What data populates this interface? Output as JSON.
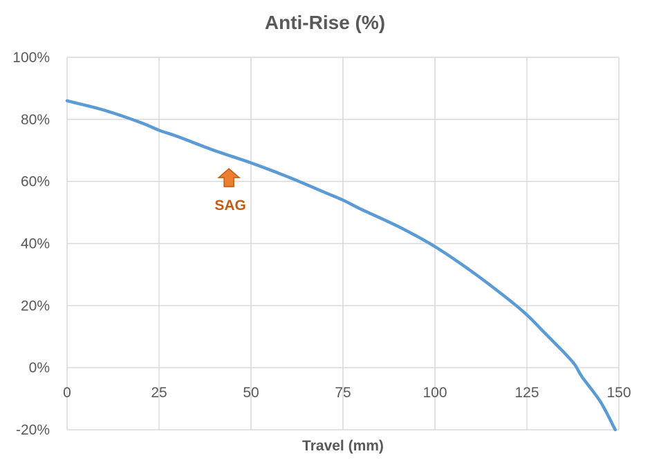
{
  "chart_data": {
    "type": "line",
    "title": "Anti-Rise (%)",
    "xlabel": "Travel (mm)",
    "ylabel": "",
    "xlim": [
      0,
      150
    ],
    "ylim": [
      -20,
      100
    ],
    "x_ticks": [
      0,
      25,
      50,
      75,
      100,
      125,
      150
    ],
    "x_tick_labels": [
      "0",
      "25",
      "50",
      "75",
      "100",
      "125",
      "150"
    ],
    "y_ticks": [
      -20,
      0,
      20,
      40,
      60,
      80,
      100
    ],
    "y_tick_labels": [
      "-20%",
      "0%",
      "20%",
      "40%",
      "60%",
      "80%",
      "100%"
    ],
    "grid": true,
    "legend": "none",
    "series": [
      {
        "color": "#5b9bd5",
        "x": [
          0,
          10,
          20,
          25,
          30,
          40,
          50,
          60,
          70,
          75,
          80,
          90,
          100,
          110,
          120,
          125,
          130,
          135,
          138,
          140,
          145,
          149
        ],
        "y": [
          86,
          83,
          79,
          76.5,
          74.5,
          70,
          66,
          61.5,
          56.5,
          54,
          51,
          45.5,
          39,
          31,
          22,
          17,
          11,
          5,
          1,
          -3,
          -11,
          -20
        ]
      }
    ],
    "annotations": [
      {
        "text": "SAG",
        "x": 44,
        "y": 61,
        "marker": "up-arrow",
        "color": "#ed7d31",
        "border_color": "#c55a11"
      }
    ]
  }
}
